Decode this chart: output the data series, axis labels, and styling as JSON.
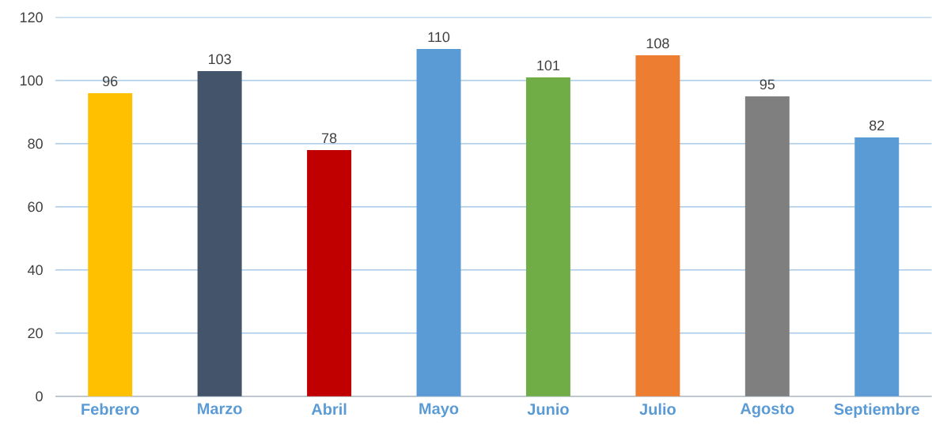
{
  "chart_data": {
    "type": "bar",
    "categories": [
      "Febrero",
      "Marzo",
      "Abril",
      "Mayo",
      "Junio",
      "Julio",
      "Agosto",
      "Septiembre"
    ],
    "values": [
      96,
      103,
      78,
      110,
      101,
      108,
      95,
      82
    ],
    "colors": [
      "#ffc000",
      "#44546a",
      "#c00000",
      "#5b9bd5",
      "#70ad47",
      "#ed7d31",
      "#7f7f7f",
      "#5b9bd5"
    ],
    "ylim": [
      0,
      120
    ],
    "yticks": [
      0,
      20,
      40,
      60,
      80,
      100,
      120
    ],
    "grid": "y",
    "data_labels": true
  }
}
